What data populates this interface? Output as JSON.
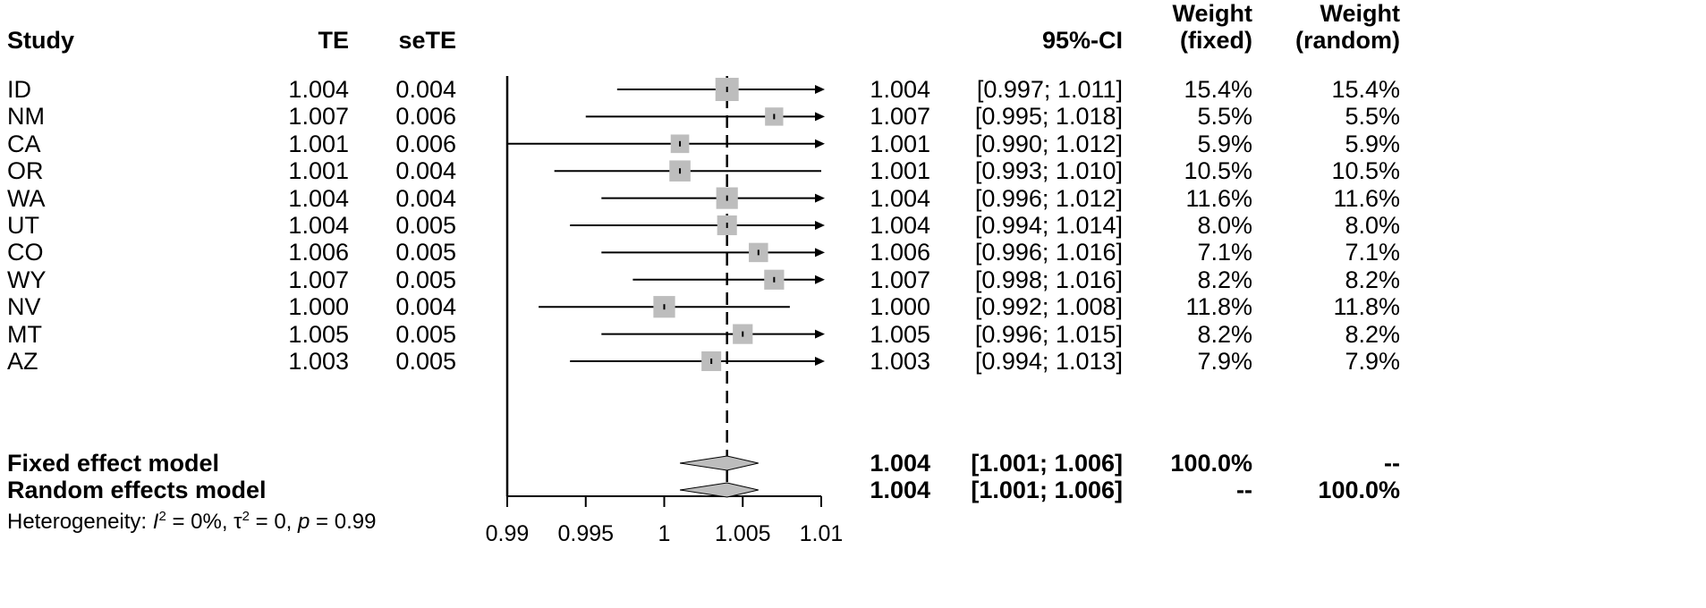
{
  "headers": {
    "study": "Study",
    "te": "TE",
    "sete": "seTE",
    "ci": "95%-CI",
    "weight_fixed_line1": "Weight",
    "weight_fixed_line2": "(fixed)",
    "weight_random_line1": "Weight",
    "weight_random_line2": "(random)"
  },
  "studies": [
    {
      "name": "ID",
      "te": "1.004",
      "sete": "0.004",
      "est": "1.004",
      "ci": "[0.997; 1.011]",
      "w_fixed": "15.4%",
      "w_random": "15.4%"
    },
    {
      "name": "NM",
      "te": "1.007",
      "sete": "0.006",
      "est": "1.007",
      "ci": "[0.995; 1.018]",
      "w_fixed": "5.5%",
      "w_random": "5.5%"
    },
    {
      "name": "CA",
      "te": "1.001",
      "sete": "0.006",
      "est": "1.001",
      "ci": "[0.990; 1.012]",
      "w_fixed": "5.9%",
      "w_random": "5.9%"
    },
    {
      "name": "OR",
      "te": "1.001",
      "sete": "0.004",
      "est": "1.001",
      "ci": "[0.993; 1.010]",
      "w_fixed": "10.5%",
      "w_random": "10.5%"
    },
    {
      "name": "WA",
      "te": "1.004",
      "sete": "0.004",
      "est": "1.004",
      "ci": "[0.996; 1.012]",
      "w_fixed": "11.6%",
      "w_random": "11.6%"
    },
    {
      "name": "UT",
      "te": "1.004",
      "sete": "0.005",
      "est": "1.004",
      "ci": "[0.994; 1.014]",
      "w_fixed": "8.0%",
      "w_random": "8.0%"
    },
    {
      "name": "CO",
      "te": "1.006",
      "sete": "0.005",
      "est": "1.006",
      "ci": "[0.996; 1.016]",
      "w_fixed": "7.1%",
      "w_random": "7.1%"
    },
    {
      "name": "WY",
      "te": "1.007",
      "sete": "0.005",
      "est": "1.007",
      "ci": "[0.998; 1.016]",
      "w_fixed": "8.2%",
      "w_random": "8.2%"
    },
    {
      "name": "NV",
      "te": "1.000",
      "sete": "0.004",
      "est": "1.000",
      "ci": "[0.992; 1.008]",
      "w_fixed": "11.8%",
      "w_random": "11.8%"
    },
    {
      "name": "MT",
      "te": "1.005",
      "sete": "0.005",
      "est": "1.005",
      "ci": "[0.996; 1.015]",
      "w_fixed": "8.2%",
      "w_random": "8.2%"
    },
    {
      "name": "AZ",
      "te": "1.003",
      "sete": "0.005",
      "est": "1.003",
      "ci": "[0.994; 1.013]",
      "w_fixed": "7.9%",
      "w_random": "7.9%"
    }
  ],
  "summaries": [
    {
      "name": "Fixed effect model",
      "est": "1.004",
      "ci": "[1.001; 1.006]",
      "w_fixed": "100.0%",
      "w_random": "--"
    },
    {
      "name": "Random effects model",
      "est": "1.004",
      "ci": "[1.001; 1.006]",
      "w_fixed": "--",
      "w_random": "100.0%"
    }
  ],
  "heterogeneity": {
    "prefix": "Heterogeneity: ",
    "i2_symbol": "I",
    "i2_exp": "2",
    "i2_value": " = 0%, ",
    "tau_symbol": "τ",
    "tau_exp": "2",
    "tau_value": " = 0, ",
    "p_symbol": "p",
    "p_value": " = 0.99"
  },
  "chart_data": {
    "type": "forest",
    "xlim": [
      0.99,
      1.01
    ],
    "x_ticks": [
      "0.99",
      "0.995",
      "1",
      "1.005",
      "1.01"
    ],
    "x_tick_values": [
      0.99,
      0.995,
      1.0,
      1.005,
      1.01
    ],
    "reference_line": 1.004,
    "series": [
      {
        "name": "ID",
        "estimate": 1.004,
        "lower": 0.997,
        "upper": 1.011,
        "weight": 15.4
      },
      {
        "name": "NM",
        "estimate": 1.007,
        "lower": 0.995,
        "upper": 1.018,
        "weight": 5.5
      },
      {
        "name": "CA",
        "estimate": 1.001,
        "lower": 0.99,
        "upper": 1.012,
        "weight": 5.9
      },
      {
        "name": "OR",
        "estimate": 1.001,
        "lower": 0.993,
        "upper": 1.01,
        "weight": 10.5
      },
      {
        "name": "WA",
        "estimate": 1.004,
        "lower": 0.996,
        "upper": 1.012,
        "weight": 11.6
      },
      {
        "name": "UT",
        "estimate": 1.004,
        "lower": 0.994,
        "upper": 1.014,
        "weight": 8.0
      },
      {
        "name": "CO",
        "estimate": 1.006,
        "lower": 0.996,
        "upper": 1.016,
        "weight": 7.1
      },
      {
        "name": "WY",
        "estimate": 1.007,
        "lower": 0.998,
        "upper": 1.016,
        "weight": 8.2
      },
      {
        "name": "NV",
        "estimate": 1.0,
        "lower": 0.992,
        "upper": 1.008,
        "weight": 11.8
      },
      {
        "name": "MT",
        "estimate": 1.005,
        "lower": 0.996,
        "upper": 1.015,
        "weight": 8.2
      },
      {
        "name": "AZ",
        "estimate": 1.003,
        "lower": 0.994,
        "upper": 1.013,
        "weight": 7.9
      }
    ],
    "summaries": [
      {
        "name": "Fixed effect model",
        "estimate": 1.004,
        "lower": 1.001,
        "upper": 1.006
      },
      {
        "name": "Random effects model",
        "estimate": 1.004,
        "lower": 1.001,
        "upper": 1.006
      }
    ],
    "marker_color": "#bdbdbd",
    "line_color": "#000000"
  }
}
